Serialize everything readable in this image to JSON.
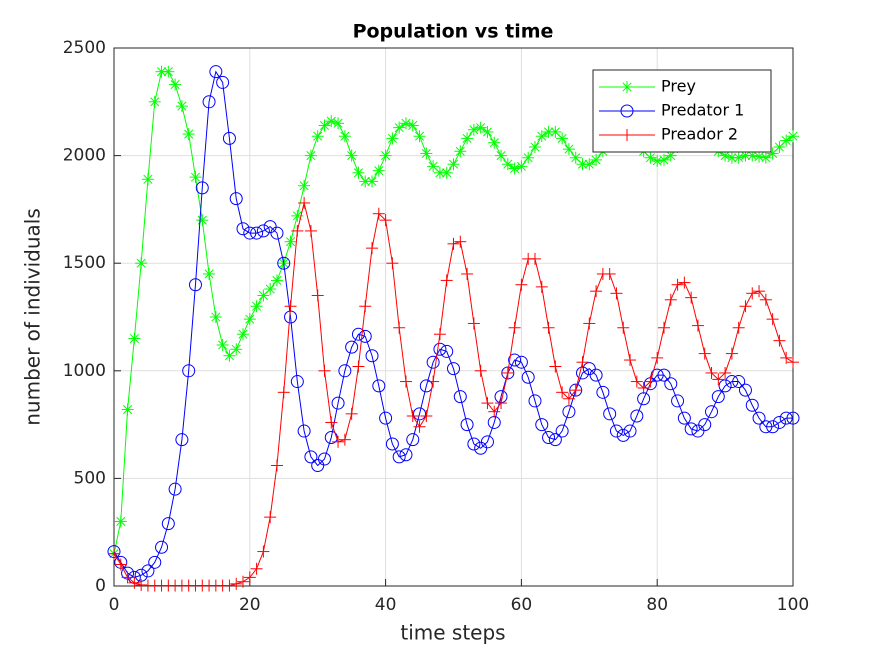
{
  "chart_data": {
    "type": "line",
    "title": "Population vs time",
    "x_label": "time steps",
    "y_label": "number of individuals",
    "x": [
      0,
      1,
      2,
      3,
      4,
      5,
      6,
      7,
      8,
      9,
      10,
      11,
      12,
      13,
      14,
      15,
      16,
      17,
      18,
      19,
      20,
      21,
      22,
      23,
      24,
      25,
      26,
      27,
      28,
      29,
      30,
      31,
      32,
      33,
      34,
      35,
      36,
      37,
      38,
      39,
      40,
      41,
      42,
      43,
      44,
      45,
      46,
      47,
      48,
      49,
      50,
      51,
      52,
      53,
      54,
      55,
      56,
      57,
      58,
      59,
      60,
      61,
      62,
      63,
      64,
      65,
      66,
      67,
      68,
      69,
      70,
      71,
      72,
      73,
      74,
      75,
      76,
      77,
      78,
      79,
      80,
      81,
      82,
      83,
      84,
      85,
      86,
      87,
      88,
      89,
      90,
      91,
      92,
      93,
      94,
      95,
      96,
      97,
      98,
      99,
      100
    ],
    "series": [
      {
        "name": "Prey",
        "color": "#00ff00",
        "marker": "star",
        "values": [
          150,
          300,
          820,
          1150,
          1500,
          1890,
          2250,
          2390,
          2390,
          2330,
          2230,
          2100,
          1900,
          1700,
          1450,
          1250,
          1120,
          1070,
          1100,
          1170,
          1240,
          1300,
          1350,
          1380,
          1420,
          1500,
          1600,
          1720,
          1860,
          2000,
          2090,
          2140,
          2160,
          2150,
          2090,
          2000,
          1920,
          1880,
          1880,
          1930,
          2000,
          2080,
          2130,
          2150,
          2140,
          2090,
          2010,
          1950,
          1920,
          1920,
          1960,
          2020,
          2080,
          2120,
          2130,
          2110,
          2060,
          2000,
          1960,
          1940,
          1950,
          1990,
          2040,
          2090,
          2110,
          2110,
          2080,
          2030,
          1990,
          1960,
          1960,
          1980,
          2020,
          2060,
          2090,
          2100,
          2090,
          2060,
          2020,
          1990,
          1975,
          1980,
          2000,
          2040,
          2070,
          2090,
          2090,
          2080,
          2050,
          2020,
          2000,
          1990,
          1990,
          2000,
          2000,
          1995,
          1990,
          2010,
          2040,
          2070,
          2090
        ]
      },
      {
        "name": "Predator 1",
        "color": "#0000ff",
        "marker": "circle",
        "values": [
          160,
          110,
          60,
          40,
          50,
          70,
          110,
          180,
          290,
          450,
          680,
          1000,
          1400,
          1850,
          2250,
          2390,
          2340,
          2080,
          1800,
          1660,
          1640,
          1640,
          1650,
          1670,
          1640,
          1500,
          1250,
          950,
          720,
          600,
          560,
          590,
          690,
          850,
          1000,
          1110,
          1170,
          1160,
          1070,
          930,
          780,
          660,
          600,
          610,
          680,
          800,
          930,
          1040,
          1100,
          1090,
          1010,
          880,
          750,
          660,
          640,
          670,
          760,
          880,
          990,
          1050,
          1040,
          970,
          860,
          750,
          690,
          680,
          720,
          810,
          910,
          990,
          1010,
          980,
          900,
          800,
          720,
          700,
          720,
          790,
          870,
          940,
          980,
          980,
          940,
          860,
          780,
          730,
          720,
          750,
          810,
          880,
          930,
          950,
          950,
          910,
          840,
          780,
          740,
          740,
          760,
          780,
          780
        ]
      },
      {
        "name": "Preador 2",
        "color": "#ff0000",
        "marker": "plus",
        "values": [
          150,
          100,
          40,
          15,
          5,
          2,
          2,
          2,
          2,
          2,
          2,
          2,
          2,
          2,
          2,
          2,
          2,
          2,
          10,
          20,
          40,
          80,
          160,
          320,
          560,
          900,
          1300,
          1650,
          1780,
          1650,
          1350,
          1000,
          760,
          670,
          680,
          800,
          1020,
          1300,
          1570,
          1730,
          1700,
          1500,
          1200,
          950,
          790,
          740,
          790,
          950,
          1170,
          1420,
          1590,
          1600,
          1450,
          1220,
          1000,
          850,
          810,
          850,
          990,
          1200,
          1400,
          1520,
          1520,
          1390,
          1200,
          1020,
          900,
          870,
          910,
          1040,
          1220,
          1370,
          1450,
          1450,
          1360,
          1200,
          1050,
          950,
          920,
          950,
          1060,
          1200,
          1330,
          1400,
          1410,
          1340,
          1210,
          1080,
          990,
          960,
          990,
          1080,
          1200,
          1300,
          1360,
          1370,
          1330,
          1240,
          1140,
          1060,
          1040
        ]
      }
    ],
    "xlim": [
      0,
      100
    ],
    "ylim": [
      0,
      2500
    ],
    "xticks": [
      0,
      20,
      40,
      60,
      80,
      100
    ],
    "yticks": [
      0,
      500,
      1000,
      1500,
      2000,
      2500
    ],
    "grid": true,
    "legend": "northeast"
  }
}
